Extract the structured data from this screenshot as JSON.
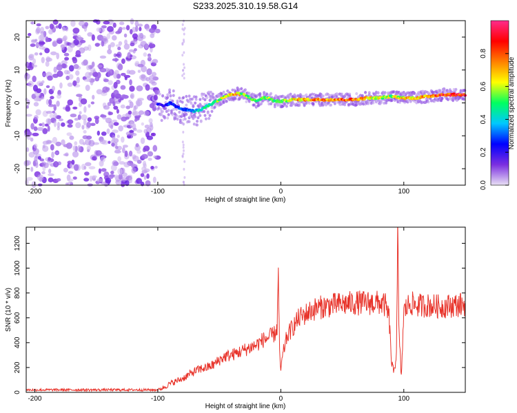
{
  "title": "S233.2025.310.19.58.G14",
  "chart_data": [
    {
      "type": "heatmap",
      "name": "spectrogram",
      "xlabel": "Height of straight line (km)",
      "ylabel": "Frequency (Hz)",
      "xlim": [
        -207,
        150
      ],
      "ylim": [
        -25,
        25
      ],
      "xticks": [
        -200,
        -100,
        0,
        100
      ],
      "yticks": [
        -20,
        -10,
        0,
        10,
        20
      ],
      "colorbar": {
        "label": "Normalized spectral amplitude",
        "ticks": [
          0.0,
          0.2,
          0.4,
          0.6,
          0.8
        ],
        "range": [
          0,
          1
        ],
        "colors": [
          "#e8e0f4",
          "#7b2fe0",
          "#0000ff",
          "#00c8ff",
          "#00ff60",
          "#ffff00",
          "#ff8000",
          "#ff0000",
          "#ff2c8c"
        ]
      },
      "noise_region_x": [
        -207,
        -100
      ],
      "signal_trace": {
        "x": [
          -100,
          -95,
          -90,
          -85,
          -80,
          -75,
          -70,
          -65,
          -60,
          -55,
          -50,
          -45,
          -40,
          -35,
          -30,
          -25,
          -20,
          -15,
          -10,
          -5,
          0,
          10,
          20,
          30,
          40,
          50,
          60,
          70,
          80,
          90,
          100,
          110,
          120,
          130,
          140,
          150
        ],
        "freq": [
          -0.5,
          -1,
          0,
          -1,
          -2,
          -2,
          -2.5,
          -2,
          -1,
          0,
          1,
          2,
          2.5,
          2.8,
          2.5,
          1.5,
          0.5,
          1.5,
          1.5,
          0.5,
          0.5,
          1,
          1,
          1,
          1,
          1,
          1,
          1.5,
          1.5,
          2,
          1.5,
          1.5,
          2,
          2.5,
          2.5,
          2.5
        ],
        "amplitude": [
          0.25,
          0.2,
          0.3,
          0.25,
          0.3,
          0.3,
          0.4,
          0.45,
          0.5,
          0.55,
          0.6,
          0.65,
          0.7,
          0.75,
          0.6,
          0.55,
          0.5,
          0.55,
          0.6,
          0.5,
          0.55,
          0.7,
          0.75,
          0.8,
          0.85,
          0.85,
          0.85,
          0.75,
          0.65,
          0.6,
          0.7,
          0.75,
          0.8,
          0.9,
          0.95,
          0.95
        ]
      }
    },
    {
      "type": "line",
      "name": "snr",
      "xlabel": "Height of straight line (km)",
      "ylabel": "SNR (10 * v/v)",
      "xlim": [
        -207,
        150
      ],
      "ylim": [
        0,
        1330
      ],
      "xticks": [
        -200,
        -100,
        0,
        100
      ],
      "yticks": [
        0,
        200,
        400,
        600,
        800,
        1000,
        1200
      ],
      "color": "#e8332a",
      "series": [
        {
          "name": "SNR",
          "x": [
            -207,
            -180,
            -150,
            -120,
            -100,
            -95,
            -90,
            -85,
            -80,
            -75,
            -70,
            -65,
            -60,
            -55,
            -50,
            -45,
            -40,
            -35,
            -30,
            -25,
            -20,
            -15,
            -10,
            -5,
            -3,
            -2,
            -1,
            0,
            2,
            5,
            10,
            15,
            20,
            25,
            30,
            40,
            50,
            60,
            70,
            80,
            85,
            88,
            90,
            92,
            94,
            95,
            96,
            98,
            100,
            105,
            110,
            120,
            130,
            140,
            150
          ],
          "y": [
            20,
            20,
            20,
            20,
            20,
            40,
            70,
            90,
            110,
            140,
            170,
            190,
            200,
            220,
            260,
            290,
            300,
            320,
            340,
            360,
            380,
            420,
            440,
            470,
            520,
            950,
            300,
            180,
            320,
            450,
            530,
            600,
            630,
            660,
            680,
            700,
            710,
            720,
            720,
            720,
            700,
            600,
            250,
            150,
            320,
            1330,
            500,
            120,
            650,
            720,
            700,
            700,
            690,
            700,
            710
          ]
        }
      ]
    }
  ]
}
